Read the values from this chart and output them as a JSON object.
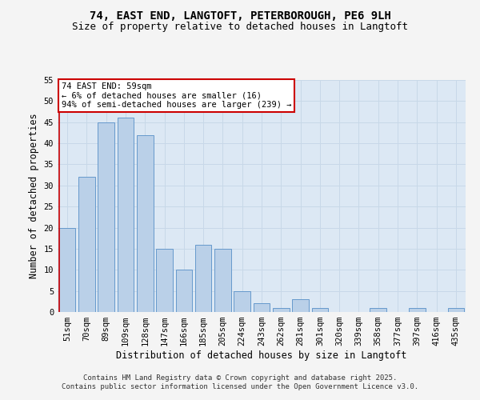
{
  "title_line1": "74, EAST END, LANGTOFT, PETERBOROUGH, PE6 9LH",
  "title_line2": "Size of property relative to detached houses in Langtoft",
  "xlabel": "Distribution of detached houses by size in Langtoft",
  "ylabel": "Number of detached properties",
  "categories": [
    "51sqm",
    "70sqm",
    "89sqm",
    "109sqm",
    "128sqm",
    "147sqm",
    "166sqm",
    "185sqm",
    "205sqm",
    "224sqm",
    "243sqm",
    "262sqm",
    "281sqm",
    "301sqm",
    "320sqm",
    "339sqm",
    "358sqm",
    "377sqm",
    "397sqm",
    "416sqm",
    "435sqm"
  ],
  "values": [
    20,
    32,
    45,
    46,
    42,
    15,
    10,
    16,
    15,
    5,
    2,
    1,
    3,
    1,
    0,
    0,
    1,
    0,
    1,
    0,
    1
  ],
  "bar_color": "#bad0e8",
  "bar_edge_color": "#6699cc",
  "annotation_title": "74 EAST END: 59sqm",
  "annotation_line2": "← 6% of detached houses are smaller (16)",
  "annotation_line3": "94% of semi-detached houses are larger (239) →",
  "annotation_box_color": "#ffffff",
  "annotation_box_edge_color": "#cc0000",
  "vline_color": "#cc0000",
  "ylim": [
    0,
    55
  ],
  "yticks": [
    0,
    5,
    10,
    15,
    20,
    25,
    30,
    35,
    40,
    45,
    50,
    55
  ],
  "grid_color": "#c8d8e8",
  "bg_color": "#dce8f4",
  "fig_bg_color": "#f4f4f4",
  "footer_line1": "Contains HM Land Registry data © Crown copyright and database right 2025.",
  "footer_line2": "Contains public sector information licensed under the Open Government Licence v3.0.",
  "title_fontsize": 10,
  "subtitle_fontsize": 9,
  "axis_label_fontsize": 8.5,
  "tick_fontsize": 7.5,
  "annotation_fontsize": 7.5,
  "footer_fontsize": 6.5
}
